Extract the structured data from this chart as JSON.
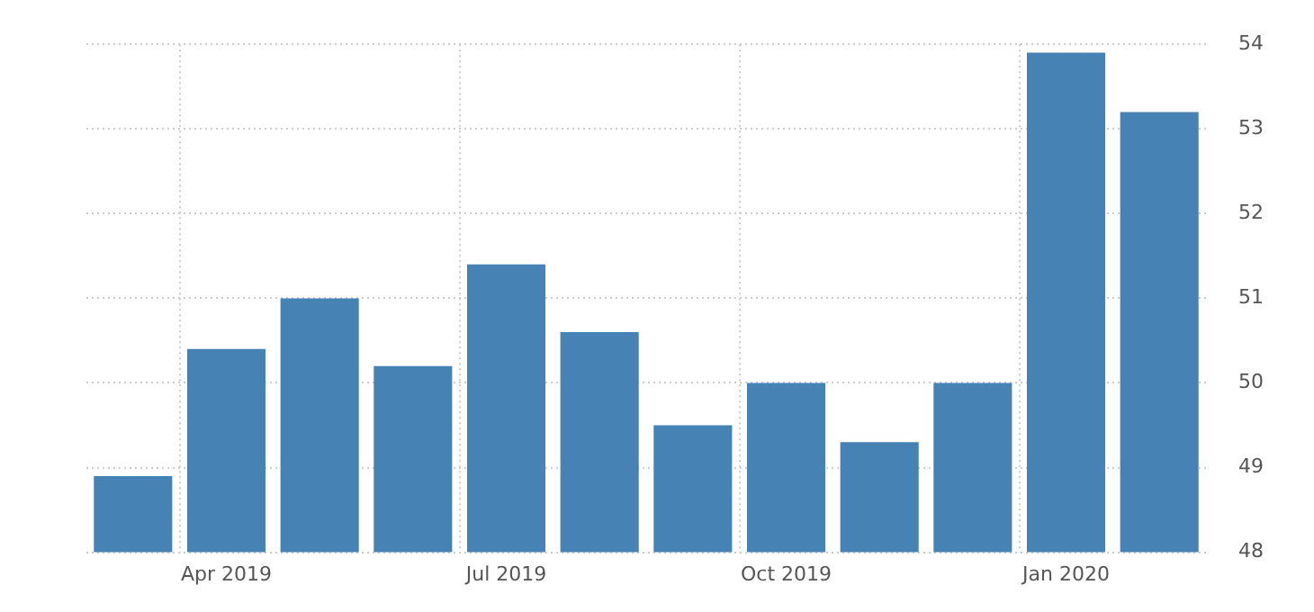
{
  "chart_data": {
    "type": "bar",
    "categories": [
      null,
      "Apr 2019",
      null,
      null,
      "Jul 2019",
      null,
      null,
      "Oct 2019",
      null,
      null,
      "Jan 2020",
      null
    ],
    "values": [
      48.9,
      50.4,
      51.0,
      50.2,
      51.4,
      50.6,
      49.5,
      50.0,
      49.3,
      50.0,
      53.9,
      53.2
    ],
    "color": "#4682b4",
    "ylim": [
      48,
      54
    ],
    "yticks": [
      48,
      49,
      50,
      51,
      52,
      53,
      54
    ],
    "grid": true,
    "legend": false
  }
}
